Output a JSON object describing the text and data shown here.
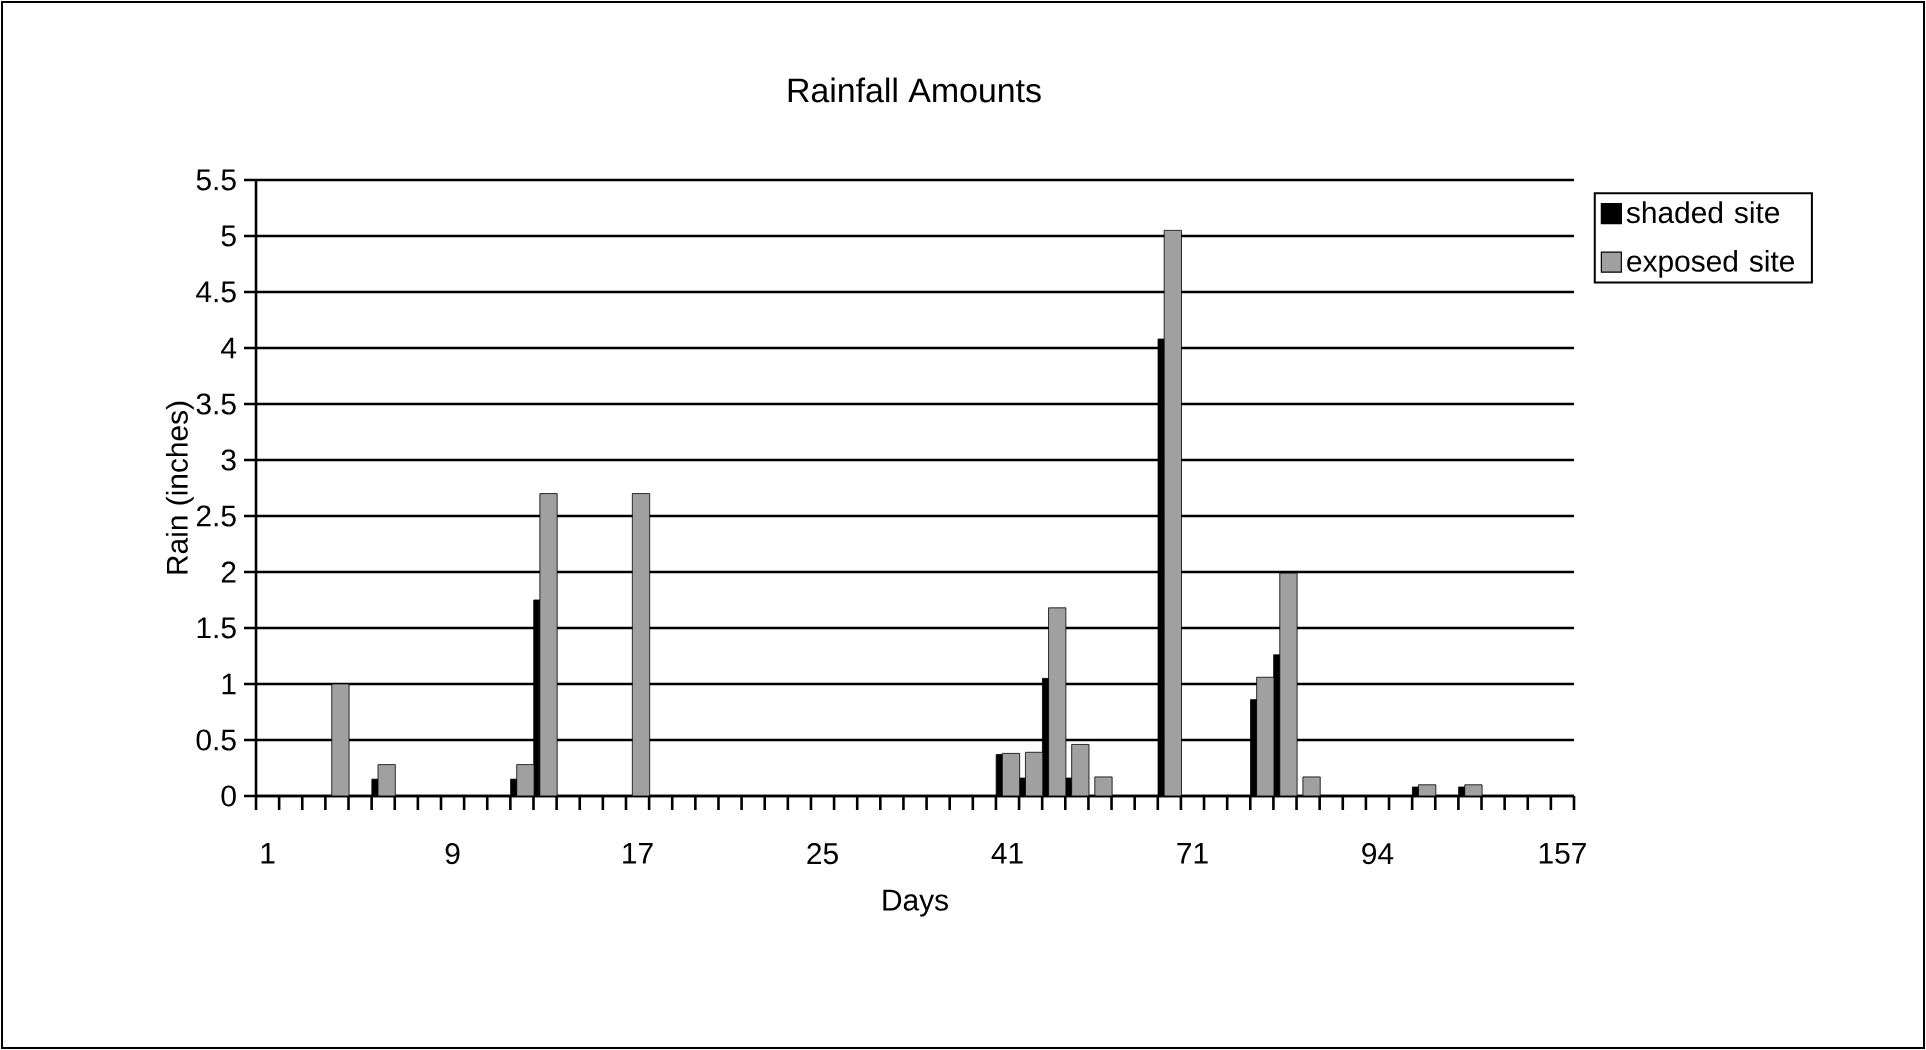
{
  "chart_data": {
    "type": "bar",
    "title": "Rainfall Amounts",
    "xlabel": "Days",
    "ylabel": "Rain (inches)",
    "categories": [
      "1",
      null,
      null,
      null,
      null,
      null,
      null,
      null,
      "9",
      null,
      null,
      null,
      null,
      null,
      null,
      null,
      "17",
      null,
      null,
      null,
      null,
      null,
      null,
      null,
      "25",
      null,
      null,
      null,
      null,
      null,
      null,
      null,
      "41",
      null,
      null,
      null,
      null,
      null,
      null,
      null,
      "71",
      null,
      null,
      null,
      null,
      null,
      null,
      null,
      "94",
      null,
      null,
      null,
      null,
      null,
      null,
      null,
      "157"
    ],
    "series": [
      {
        "name": "shaded site",
        "color": "#000000",
        "values": [
          null,
          null,
          null,
          null,
          null,
          0.15,
          null,
          null,
          null,
          null,
          null,
          0.15,
          1.75,
          null,
          null,
          null,
          null,
          null,
          null,
          null,
          null,
          null,
          null,
          null,
          null,
          null,
          null,
          null,
          null,
          null,
          null,
          null,
          0.37,
          0.16,
          1.05,
          0.16,
          null,
          null,
          null,
          4.08,
          null,
          null,
          null,
          0.86,
          1.26,
          null,
          null,
          null,
          null,
          null,
          0.08,
          null,
          0.08,
          null,
          null,
          null,
          null
        ]
      },
      {
        "name": "exposed site",
        "color": "#a0a0a0",
        "values": [
          null,
          null,
          null,
          1.0,
          null,
          0.28,
          null,
          null,
          null,
          null,
          null,
          0.28,
          2.7,
          null,
          null,
          null,
          2.7,
          null,
          null,
          null,
          null,
          null,
          null,
          null,
          null,
          null,
          null,
          null,
          null,
          null,
          null,
          null,
          0.38,
          0.39,
          1.68,
          0.46,
          0.17,
          null,
          null,
          5.05,
          null,
          null,
          null,
          1.06,
          1.99,
          0.17,
          null,
          null,
          null,
          null,
          0.1,
          null,
          0.1,
          null,
          null,
          null,
          null
        ]
      }
    ],
    "ylim": [
      0,
      5.5
    ],
    "yticks": [
      0,
      0.5,
      1,
      1.5,
      2,
      2.5,
      3,
      3.5,
      4,
      4.5,
      5,
      5.5
    ],
    "grid": "y",
    "legend": "right"
  }
}
